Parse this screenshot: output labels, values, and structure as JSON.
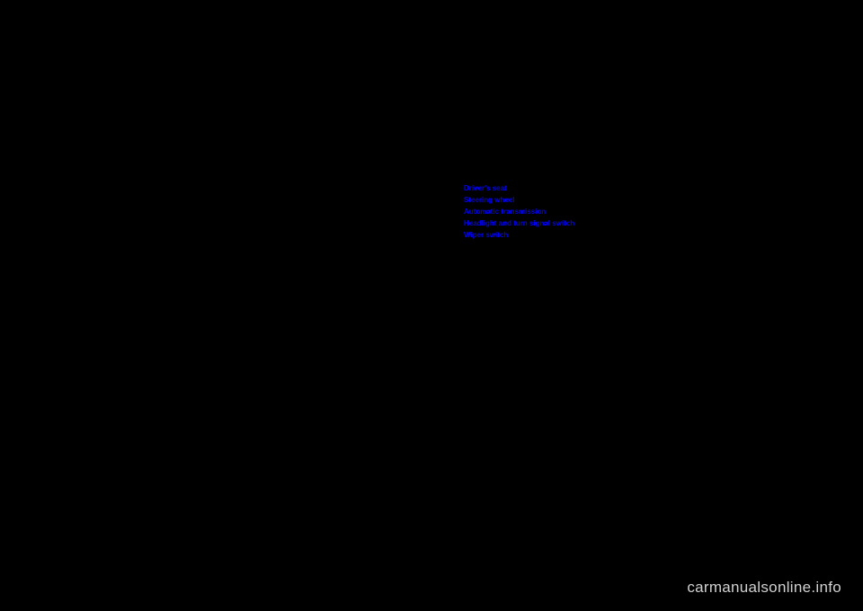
{
  "links": {
    "item0": "Driver's seat",
    "item1": "Steering wheel",
    "item2": "Automatic transmission",
    "item3": "Headlight and turn signal switch",
    "item4": "Wiper switch"
  },
  "watermark": "carmanualsonline.info",
  "colors": {
    "background": "#000000",
    "link": "#0000ff",
    "watermark": "#d0d0d0"
  },
  "typography": {
    "link_fontsize": 8,
    "link_fontweight": "bold",
    "watermark_fontsize": 17
  }
}
